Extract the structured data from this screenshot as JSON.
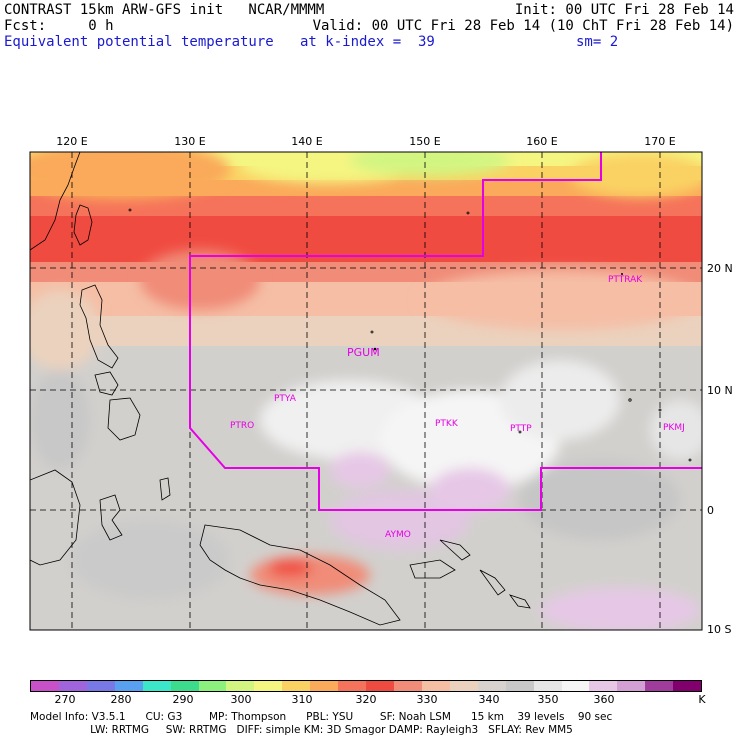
{
  "header": {
    "line1_left": "CONTRAST 15km ARW-GFS init   NCAR/MMMM",
    "line1_right": "Init: 00 UTC Fri 28 Feb 14",
    "line2_left": "Fcst:     0 h",
    "line2_right": "Valid: 00 UTC Fri 28 Feb 14 (10 ChT Fri 28 Feb 14)",
    "line3_field": "Equivalent potential temperature",
    "line3_level": "at k-index =  39",
    "line3_smooth": "sm= 2"
  },
  "map": {
    "lon_labels": [
      "120 E",
      "130 E",
      "140 E",
      "150 E",
      "160 E",
      "170 E"
    ],
    "lat_labels": [
      "20 N",
      "10 N",
      "0",
      "10 S"
    ],
    "stations": [
      "PTTRAK",
      "PGUM",
      "PTYA",
      "PTRO",
      "PTKK",
      "PTTP",
      "PKMJ",
      "AYMO"
    ]
  },
  "colorbar": {
    "labels": [
      "270",
      "280",
      "290",
      "300",
      "310",
      "320",
      "330",
      "340",
      "350",
      "360",
      "K"
    ],
    "colors": [
      "#c850c8",
      "#a064dc",
      "#7878e6",
      "#5aa0f0",
      "#3ce6c8",
      "#3cdc8c",
      "#8cf07c",
      "#d2f582",
      "#f5f582",
      "#fad264",
      "#faaa5a",
      "#f5735a",
      "#f04b41",
      "#f08c78",
      "#f5bea5",
      "#ebd2be",
      "#d7d2cd",
      "#c8c8c8",
      "#e6e6e6",
      "#f5f5f5",
      "#e6c8e6",
      "#d2a0d2",
      "#a03c9b",
      "#82006e"
    ]
  },
  "model_info": {
    "line1": "Model Info: V3.5.1      CU: G3        MP: Thompson      PBL: YSU        SF: Noah LSM      15 km    39 levels    90 sec",
    "line2": "                  LW: RRTMG     SW: RRTMG   DIFF: simple KM: 3D Smagor DAMP: Rayleigh3   SFLAY: Rev MM5"
  }
}
